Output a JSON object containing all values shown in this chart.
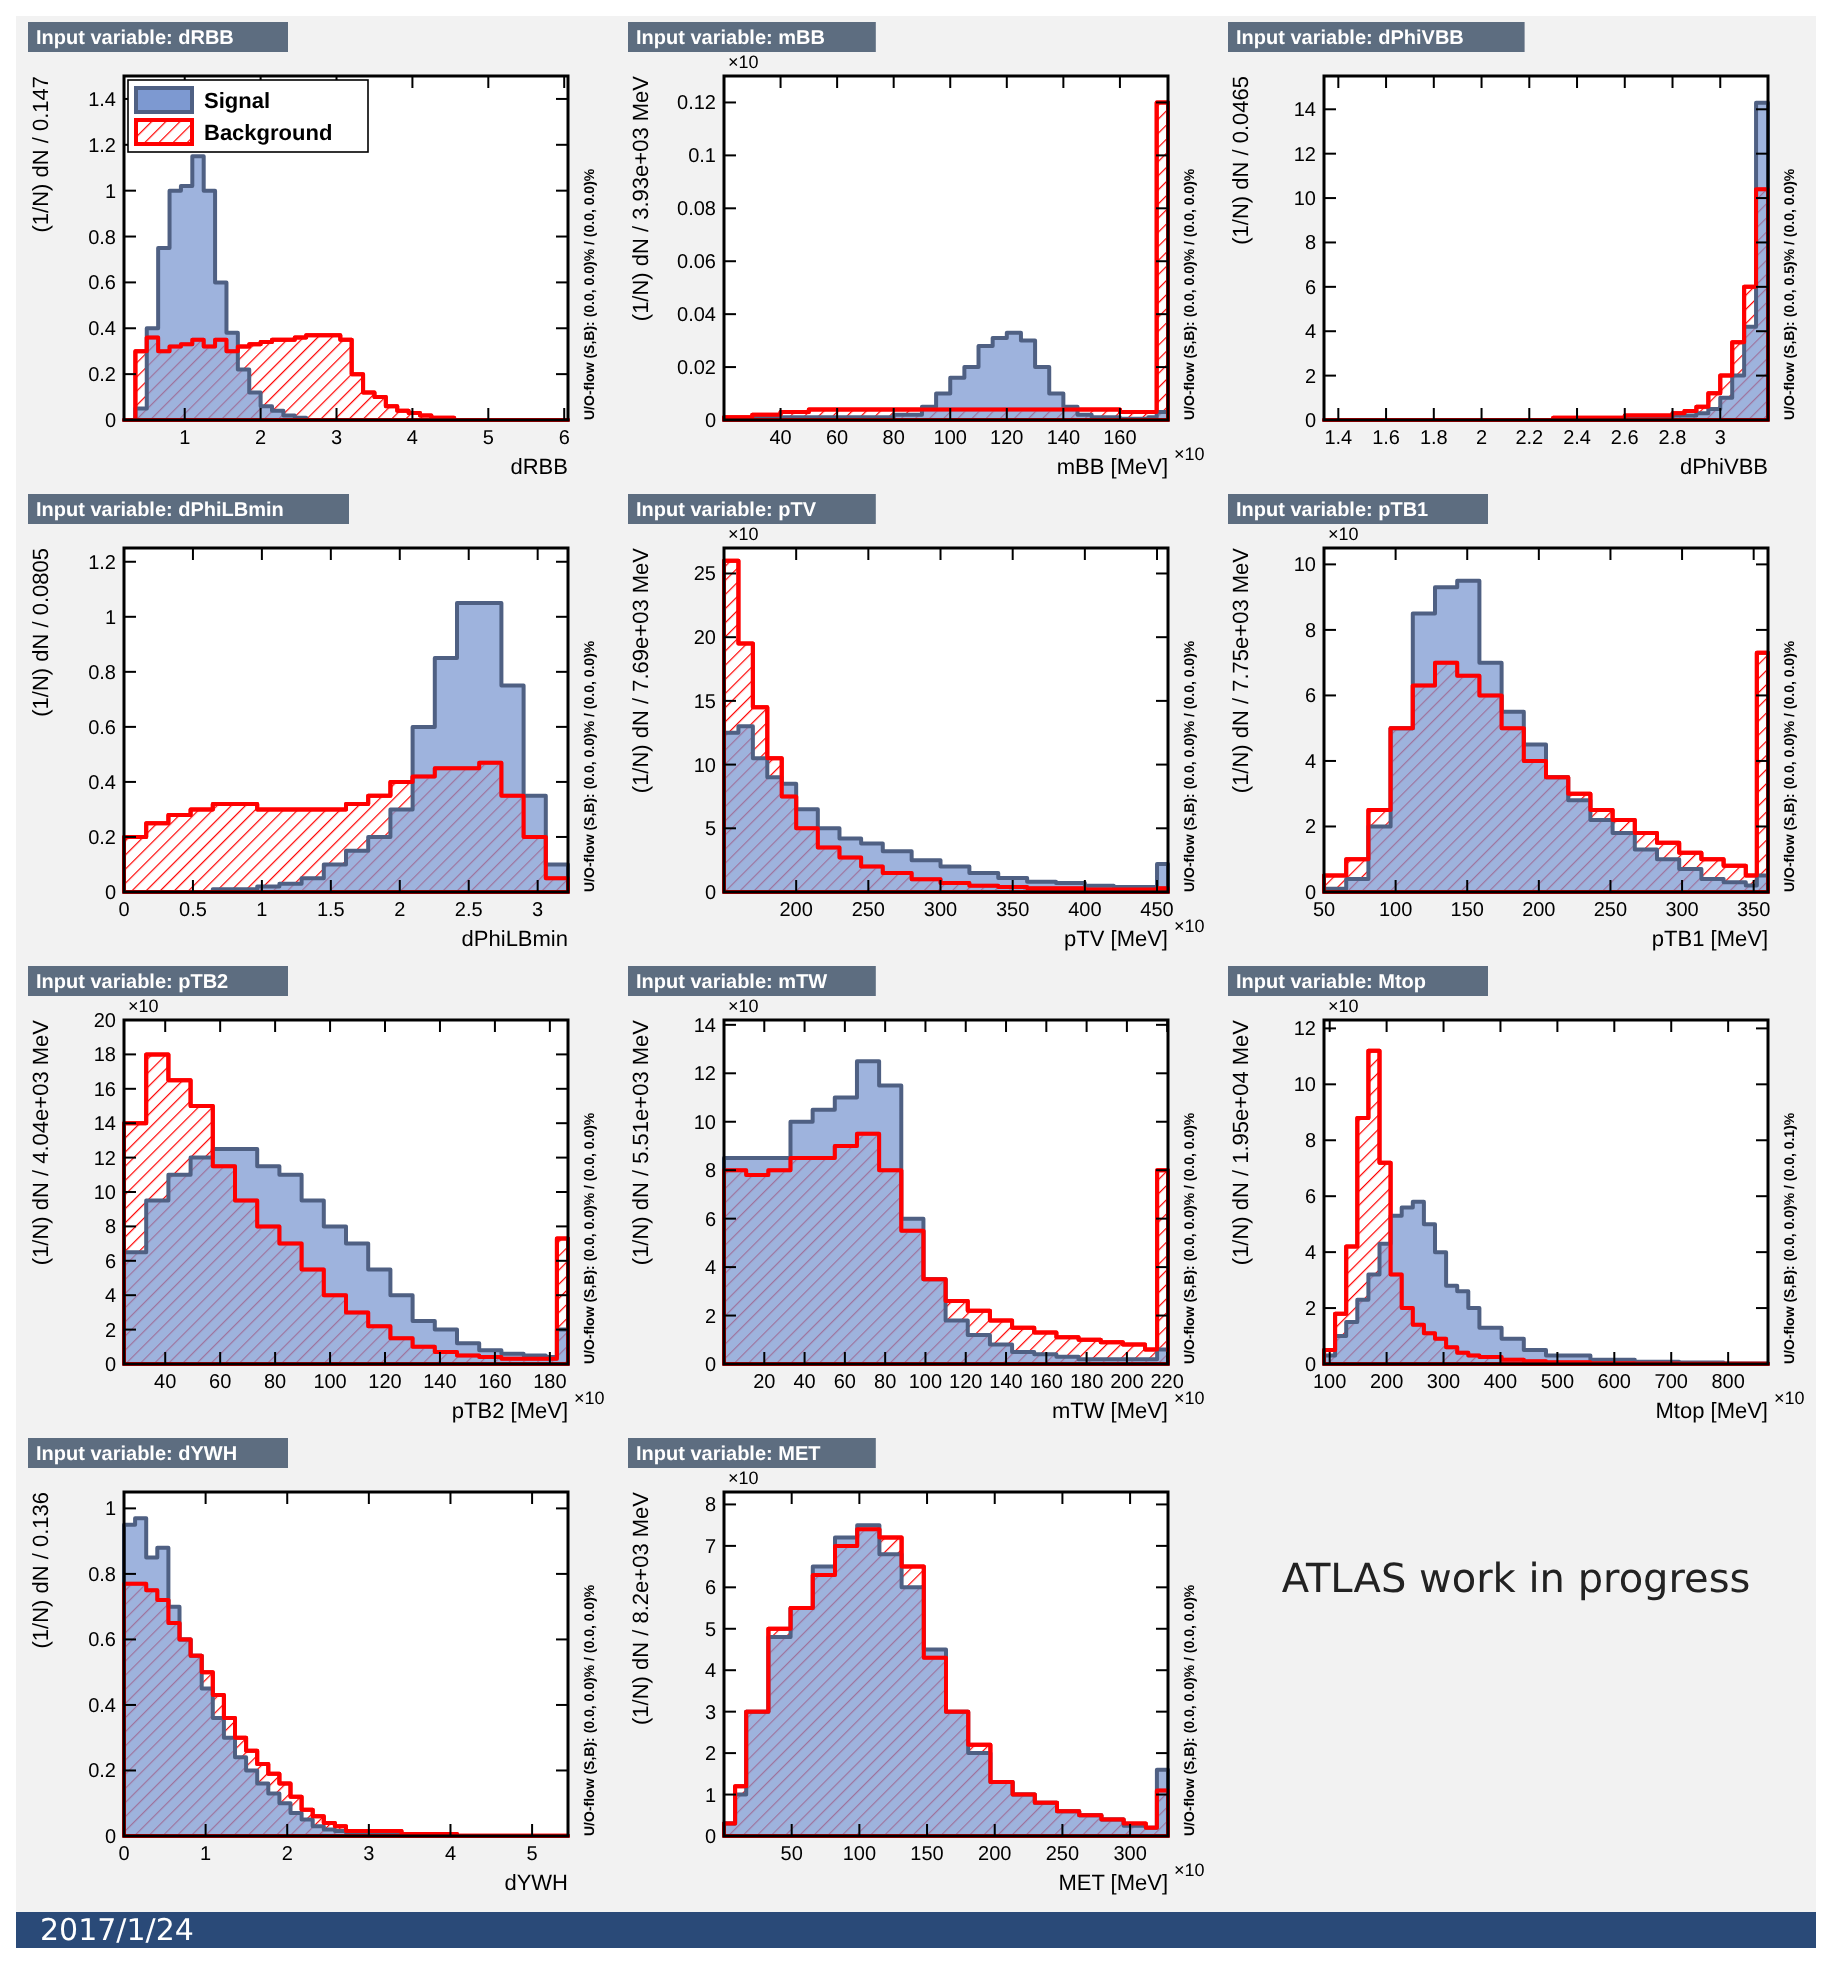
{
  "chart_data": [
    {
      "type": "histogram",
      "title": "Input variable: dRBB",
      "xlabel": "dRBB",
      "ylabel": "(1/N) dN / 0.147",
      "legend": "top left",
      "xlim": [
        0.2,
        6.05
      ],
      "xticks": [
        1,
        2,
        3,
        4,
        5,
        6
      ],
      "ylim": [
        0,
        1.5
      ],
      "yticks": [
        0,
        0.2,
        0.4,
        0.6,
        0.8,
        1,
        1.2,
        1.4
      ],
      "annotations": [
        "U/O-flow (S,B): (0.0, 0.0)% / (0.0, 0.0)%"
      ],
      "bins": [
        0.2,
        0.35,
        0.5,
        0.65,
        0.8,
        0.95,
        1.1,
        1.25,
        1.4,
        1.55,
        1.7,
        1.85,
        2,
        2.15,
        2.3,
        2.45,
        2.6,
        2.75,
        2.9,
        3.05,
        3.2,
        3.35,
        3.5,
        3.65,
        3.8,
        3.95,
        4.1,
        4.25,
        4.4,
        4.55,
        4.7,
        6.05
      ],
      "series": [
        {
          "name": "Signal",
          "color": "#7d99d1",
          "values": [
            0,
            0.05,
            0.4,
            0.75,
            1.0,
            1.02,
            1.15,
            1.0,
            0.6,
            0.38,
            0.22,
            0.12,
            0.06,
            0.04,
            0.02,
            0.01,
            0,
            0,
            0,
            0,
            0,
            0,
            0,
            0,
            0,
            0,
            0,
            0,
            0,
            0,
            0
          ]
        },
        {
          "name": "Background",
          "color": "#ff0000",
          "values": [
            0,
            0.3,
            0.36,
            0.3,
            0.32,
            0.33,
            0.35,
            0.32,
            0.35,
            0.3,
            0.32,
            0.33,
            0.34,
            0.35,
            0.35,
            0.36,
            0.37,
            0.37,
            0.37,
            0.35,
            0.2,
            0.12,
            0.1,
            0.06,
            0.04,
            0.03,
            0.02,
            0.01,
            0.01,
            0,
            0
          ]
        }
      ]
    },
    {
      "type": "histogram",
      "title": "Input variable: mBB",
      "xlabel": "mBB [MeV]",
      "ylabel": "(1/N) dN / 3.93e+03 MeV",
      "xlim": [
        20,
        177
      ],
      "xticks": [
        40,
        60,
        80,
        100,
        120,
        140,
        160
      ],
      "ylim": [
        0,
        0.13
      ],
      "yticks": [
        0,
        0.02,
        0.04,
        0.06,
        0.08,
        0.1,
        0.12
      ],
      "annotations": [
        "U/O-flow (S,B): (0.0, 0.0)% / (0.0, 0.0)%",
        "×10",
        "×10"
      ],
      "bins": [
        20,
        30,
        40,
        50,
        60,
        70,
        80,
        90,
        95,
        100,
        105,
        110,
        115,
        120,
        125,
        130,
        135,
        140,
        145,
        150,
        155,
        160,
        170,
        173,
        177
      ],
      "series": [
        {
          "color": "#7d99d1",
          "values": [
            0.0005,
            0.001,
            0.001,
            0.001,
            0.001,
            0.001,
            0.002,
            0.005,
            0.01,
            0.016,
            0.02,
            0.028,
            0.031,
            0.033,
            0.03,
            0.02,
            0.01,
            0.005,
            0.002,
            0.001,
            0.001,
            0.0005,
            0.001,
            0.003
          ]
        },
        {
          "color": "#ff0000",
          "values": [
            0.001,
            0.002,
            0.003,
            0.004,
            0.004,
            0.004,
            0.004,
            0.004,
            0.004,
            0.004,
            0.004,
            0.004,
            0.004,
            0.004,
            0.004,
            0.004,
            0.004,
            0.004,
            0.004,
            0.004,
            0.004,
            0.003,
            0.003,
            0.12
          ]
        }
      ]
    },
    {
      "type": "histogram",
      "title": "Input variable: dPhiVBB",
      "xlabel": "dPhiVBB",
      "ylabel": "(1/N) dN / 0.0465",
      "xlim": [
        1.34,
        3.2
      ],
      "xticks": [
        1.4,
        1.6,
        1.8,
        2,
        2.2,
        2.4,
        2.6,
        2.8,
        3
      ],
      "ylim": [
        0,
        15.5
      ],
      "yticks": [
        0,
        2,
        4,
        6,
        8,
        10,
        12,
        14
      ],
      "annotations": [
        "U/O-flow (S,B): (0.0, 0.5)% / (0.0, 0.0)%"
      ],
      "bins": [
        1.34,
        1.8,
        2.3,
        2.6,
        2.75,
        2.8,
        2.85,
        2.9,
        2.95,
        3.0,
        3.05,
        3.1,
        3.15,
        3.2
      ],
      "series": [
        {
          "color": "#7d99d1",
          "values": [
            0,
            0,
            0,
            0.1,
            0.1,
            0.2,
            0.2,
            0.3,
            0.5,
            1.0,
            2.0,
            4.2,
            14.3
          ]
        },
        {
          "color": "#ff0000",
          "values": [
            0,
            0,
            0.1,
            0.2,
            0.2,
            0.3,
            0.4,
            0.6,
            1.2,
            2.0,
            3.5,
            6.0,
            10.4
          ]
        }
      ]
    },
    {
      "type": "histogram",
      "title": "Input variable: dPhiLBmin",
      "xlabel": "dPhiLBmin",
      "ylabel": "(1/N) dN / 0.0805",
      "xlim": [
        0,
        3.22
      ],
      "xticks": [
        0,
        0.5,
        1,
        1.5,
        2,
        2.5,
        3
      ],
      "ylim": [
        0,
        1.25
      ],
      "yticks": [
        0,
        0.2,
        0.4,
        0.6,
        0.8,
        1,
        1.2
      ],
      "annotations": [
        "U/O-flow (S,B): (0.0, 0.0)% / (0.0, 0.0)%"
      ],
      "bins": [
        0,
        0.161,
        0.322,
        0.483,
        0.644,
        0.805,
        0.966,
        1.127,
        1.288,
        1.449,
        1.61,
        1.771,
        1.932,
        2.093,
        2.254,
        2.415,
        2.576,
        2.737,
        2.898,
        3.059,
        3.22
      ],
      "series": [
        {
          "color": "#7d99d1",
          "values": [
            0,
            0,
            0,
            0,
            0.01,
            0.01,
            0.02,
            0.03,
            0.05,
            0.1,
            0.15,
            0.2,
            0.3,
            0.6,
            0.85,
            1.05,
            1.05,
            0.75,
            0.35,
            0.1
          ]
        },
        {
          "color": "#ff0000",
          "values": [
            0.2,
            0.25,
            0.28,
            0.3,
            0.32,
            0.32,
            0.3,
            0.3,
            0.3,
            0.3,
            0.32,
            0.35,
            0.4,
            0.42,
            0.45,
            0.45,
            0.47,
            0.35,
            0.2,
            0.05
          ]
        }
      ]
    },
    {
      "type": "histogram",
      "title": "Input variable: pTV",
      "xlabel": "pTV [MeV]",
      "ylabel": "(1/N) dN / 7.69e+03 MeV",
      "xlim": [
        150,
        457.6
      ],
      "xticks": [
        200,
        250,
        300,
        350,
        400,
        450
      ],
      "ylim": [
        0,
        27
      ],
      "yticks": [
        0,
        5,
        10,
        15,
        20,
        25
      ],
      "annotations": [
        "U/O-flow (S,B): (0.0, 0.0)% / (0.0, 0.0)%",
        "×10",
        "×10"
      ],
      "bins": [
        150,
        160,
        170,
        180,
        190,
        200,
        215,
        230,
        245,
        260,
        280,
        300,
        320,
        340,
        360,
        380,
        400,
        420,
        440,
        450,
        457.6
      ],
      "series": [
        {
          "color": "#7d99d1",
          "values": [
            12.5,
            13,
            10.5,
            9,
            8.5,
            6.5,
            5,
            4.2,
            3.8,
            3.2,
            2.5,
            2,
            1.5,
            1.1,
            0.8,
            0.7,
            0.5,
            0.4,
            0.4,
            2.2
          ]
        },
        {
          "color": "#ff0000",
          "values": [
            26,
            19.5,
            14.5,
            10.5,
            7.5,
            5,
            3.5,
            2.7,
            2,
            1.5,
            1,
            0.7,
            0.5,
            0.4,
            0.3,
            0.3,
            0.2,
            0.2,
            0.2,
            0.3
          ]
        }
      ]
    },
    {
      "type": "histogram",
      "title": "Input variable: pTB1",
      "xlabel": "pTB1 [MeV]",
      "ylabel": "(1/N) dN / 7.75e+03 MeV",
      "xlim": [
        50,
        360
      ],
      "xticks": [
        50,
        100,
        150,
        200,
        250,
        300,
        350
      ],
      "ylim": [
        0,
        10.5
      ],
      "yticks": [
        0,
        2,
        4,
        6,
        8,
        10
      ],
      "annotations": [
        "U/O-flow (S,B): (0.0, 0.0)% / (0.0, 0.0)%",
        "×10"
      ],
      "bins": [
        50,
        65.5,
        81,
        96.5,
        112,
        127.5,
        143,
        158.5,
        174,
        189.5,
        205,
        220.5,
        236,
        251.5,
        267,
        282.5,
        298,
        313.5,
        329,
        344.5,
        352.2,
        360
      ],
      "series": [
        {
          "color": "#7d99d1",
          "values": [
            0.1,
            0.4,
            2,
            5,
            8.5,
            9.3,
            9.5,
            7,
            5.5,
            4.5,
            3.5,
            2.8,
            2.2,
            1.8,
            1.3,
            1.0,
            0.7,
            0.4,
            0.3,
            0.2,
            0.5
          ]
        },
        {
          "color": "#ff0000",
          "values": [
            0.5,
            1,
            2.5,
            5,
            6.3,
            7,
            6.6,
            6,
            5,
            4,
            3.5,
            3,
            2.5,
            2.2,
            1.8,
            1.5,
            1.2,
            1.0,
            0.8,
            0.5,
            7.3
          ]
        }
      ]
    },
    {
      "type": "histogram",
      "title": "Input variable: pTB2",
      "xlabel": "pTB2 [MeV]",
      "ylabel": "(1/N) dN / 4.04e+03 MeV",
      "xlim": [
        25,
        186.6
      ],
      "xticks": [
        40,
        60,
        80,
        100,
        120,
        140,
        160,
        180
      ],
      "ylim": [
        0,
        20
      ],
      "yticks": [
        0,
        2,
        4,
        6,
        8,
        10,
        12,
        14,
        16,
        18,
        20
      ],
      "annotations": [
        "U/O-flow (S,B): (0.0, 0.0)% / (0.0, 0.0)%",
        "×10",
        "×10"
      ],
      "bins": [
        25,
        33.08,
        41.16,
        49.24,
        57.32,
        65.4,
        73.48,
        81.56,
        89.64,
        97.72,
        105.8,
        113.88,
        121.96,
        130.04,
        138.12,
        146.2,
        154.28,
        162.36,
        170.44,
        178.52,
        182.56,
        186.6
      ],
      "series": [
        {
          "color": "#7d99d1",
          "values": [
            6.5,
            9.5,
            11,
            12,
            12.5,
            12.5,
            11.5,
            11,
            9.5,
            8,
            7,
            5.5,
            4,
            2.5,
            2,
            1.2,
            0.8,
            0.6,
            0.5,
            0.4,
            2
          ]
        },
        {
          "color": "#ff0000",
          "values": [
            14,
            18,
            16.5,
            15,
            11.5,
            9.5,
            8,
            7,
            5.5,
            4,
            3,
            2.2,
            1.5,
            1,
            0.7,
            0.5,
            0.4,
            0.3,
            0.3,
            0.3,
            7.3
          ]
        }
      ]
    },
    {
      "type": "histogram",
      "title": "Input variable: mTW",
      "xlabel": "mTW [MeV]",
      "ylabel": "(1/N) dN / 5.51e+03 MeV",
      "xlim": [
        0,
        220.4
      ],
      "xticks": [
        20,
        40,
        60,
        80,
        100,
        120,
        140,
        160,
        180,
        200,
        220
      ],
      "ylim": [
        0,
        14.2
      ],
      "yticks": [
        0,
        2,
        4,
        6,
        8,
        10,
        12,
        14
      ],
      "annotations": [
        "U/O-flow (S,B): (0.0, 0.0)% / (0.0, 0.0)%",
        "×10",
        "×10"
      ],
      "bins": [
        0,
        11,
        22,
        33,
        44,
        55,
        66,
        77,
        88,
        99,
        110,
        121,
        132,
        143,
        154,
        165,
        176,
        187,
        198,
        209,
        215,
        220.4
      ],
      "series": [
        {
          "color": "#7d99d1",
          "values": [
            8.5,
            8.5,
            8.5,
            10,
            10.5,
            11,
            12.5,
            11.5,
            6,
            3.5,
            1.8,
            1.2,
            0.8,
            0.5,
            0.4,
            0.3,
            0.2,
            0.2,
            0.2,
            0.2,
            0.6
          ]
        },
        {
          "color": "#ff0000",
          "values": [
            8,
            7.8,
            8,
            8.5,
            8.5,
            9,
            9.5,
            8,
            5.5,
            3.5,
            2.6,
            2.2,
            1.8,
            1.5,
            1.3,
            1.1,
            1.0,
            0.9,
            0.8,
            0.6,
            8
          ]
        }
      ]
    },
    {
      "type": "histogram",
      "title": "Input variable: Mtop",
      "xlabel": "Mtop [MeV]",
      "ylabel": "(1/N) dN / 1.95e+04 MeV",
      "xlim": [
        90,
        870
      ],
      "xticks": [
        100,
        200,
        300,
        400,
        500,
        600,
        700,
        800
      ],
      "ylim": [
        0,
        12.3
      ],
      "yticks": [
        0,
        2,
        4,
        6,
        8,
        10,
        12
      ],
      "annotations": [
        "U/O-flow (S,B): (0.0, 0.0)% / (0.0, 0.1)%",
        "×10",
        "×10"
      ],
      "bins": [
        90,
        109.5,
        129,
        148.5,
        168,
        187.5,
        207,
        226.5,
        246,
        265.5,
        285,
        304.5,
        324,
        343.5,
        363,
        402,
        441,
        480,
        558,
        636,
        714,
        792,
        870
      ],
      "series": [
        {
          "color": "#7d99d1",
          "values": [
            0.3,
            1,
            1.5,
            2.3,
            3.2,
            4.3,
            5.3,
            5.6,
            5.8,
            5.0,
            4.0,
            2.8,
            2.6,
            2.0,
            1.3,
            0.9,
            0.5,
            0.3,
            0.15,
            0.08,
            0.05,
            0.02
          ]
        },
        {
          "color": "#ff0000",
          "values": [
            0.5,
            1.8,
            4.2,
            8.8,
            11.2,
            7.2,
            3.2,
            2.0,
            1.4,
            1.1,
            0.9,
            0.6,
            0.4,
            0.3,
            0.25,
            0.15,
            0.1,
            0.06,
            0.03,
            0.02,
            0.01,
            0.01
          ]
        }
      ]
    },
    {
      "type": "histogram",
      "title": "Input variable: dYWH",
      "xlabel": "dYWH",
      "ylabel": "(1/N) dN / 0.136",
      "xlim": [
        0,
        5.44
      ],
      "xticks": [
        0,
        1,
        2,
        3,
        4,
        5
      ],
      "ylim": [
        0,
        1.05
      ],
      "yticks": [
        0,
        0.2,
        0.4,
        0.6,
        0.8,
        1
      ],
      "annotations": [
        "U/O-flow (S,B): (0.0, 0.0)% / (0.0, 0.0)%"
      ],
      "bins": [
        0,
        0.136,
        0.272,
        0.408,
        0.544,
        0.68,
        0.816,
        0.952,
        1.088,
        1.224,
        1.36,
        1.496,
        1.632,
        1.768,
        1.904,
        2.04,
        2.176,
        2.312,
        2.448,
        2.584,
        2.72,
        3.4,
        4.08,
        5.44
      ],
      "series": [
        {
          "color": "#7d99d1",
          "values": [
            0.95,
            0.97,
            0.85,
            0.88,
            0.7,
            0.6,
            0.55,
            0.45,
            0.36,
            0.3,
            0.24,
            0.2,
            0.16,
            0.13,
            0.1,
            0.07,
            0.05,
            0.03,
            0.02,
            0.015,
            0.01,
            0.004,
            0
          ]
        },
        {
          "color": "#ff0000",
          "values": [
            0.77,
            0.77,
            0.75,
            0.72,
            0.65,
            0.6,
            0.55,
            0.5,
            0.43,
            0.36,
            0.3,
            0.26,
            0.22,
            0.19,
            0.16,
            0.12,
            0.08,
            0.06,
            0.04,
            0.03,
            0.015,
            0.006,
            0.001
          ]
        }
      ]
    },
    {
      "type": "histogram",
      "title": "Input variable: MET",
      "xlabel": "MET [MeV]",
      "ylabel": "(1/N) dN / 8.2e+03 MeV",
      "xlim": [
        0,
        328
      ],
      "xticks": [
        50,
        100,
        150,
        200,
        250,
        300
      ],
      "ylim": [
        0,
        8.3
      ],
      "yticks": [
        0,
        1,
        2,
        3,
        4,
        5,
        6,
        7,
        8
      ],
      "annotations": [
        "U/O-flow (S,B): (0.0, 0.0)% / (0.0, 0.0)%",
        "×10",
        "×10"
      ],
      "bins": [
        0,
        8.2,
        16.4,
        32.8,
        49.2,
        65.6,
        82,
        98.4,
        114.8,
        131.2,
        147.6,
        164,
        180.4,
        196.8,
        213.2,
        229.6,
        246,
        262.4,
        278.8,
        295.2,
        311.6,
        319.8,
        328
      ],
      "series": [
        {
          "color": "#7d99d1",
          "values": [
            0.3,
            1.0,
            3.0,
            4.8,
            5.5,
            6.5,
            7.2,
            7.5,
            6.8,
            6.0,
            4.5,
            3.0,
            2.0,
            1.3,
            1.0,
            0.8,
            0.6,
            0.5,
            0.4,
            0.25,
            0.2,
            1.6
          ]
        },
        {
          "color": "#ff0000",
          "values": [
            0.3,
            1.2,
            3.0,
            5.0,
            5.5,
            6.3,
            7.0,
            7.4,
            7.2,
            6.5,
            4.3,
            3.0,
            2.2,
            1.3,
            1.0,
            0.8,
            0.6,
            0.5,
            0.4,
            0.3,
            0.2,
            1.1
          ]
        }
      ]
    },
    {
      "type": "other",
      "annotations": [
        "ATLAS work in progress",
        "2017/1/24"
      ]
    }
  ]
}
